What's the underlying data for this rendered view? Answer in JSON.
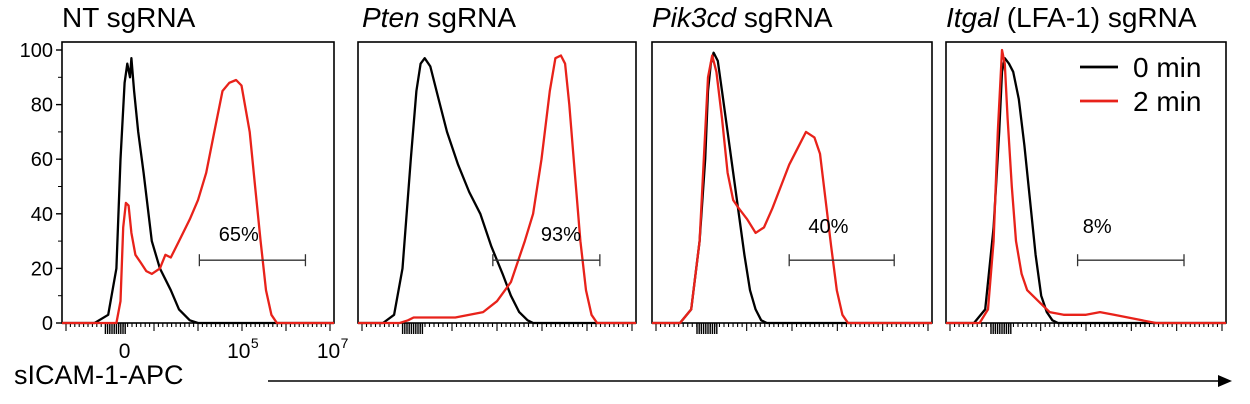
{
  "chart_data": [
    {
      "type": "line",
      "title_italic": "",
      "title": "NT sgRNA",
      "gate_percent": "65%",
      "y_ticks": [
        "0",
        "20",
        "40",
        "60",
        "80",
        "100"
      ],
      "x_ticks": [
        "0",
        "10",
        "5",
        "10",
        "7"
      ],
      "ylim": [
        0,
        100
      ],
      "series": [
        {
          "color": "#000000",
          "peak": 97
        },
        {
          "color": "#e8221a",
          "peak": 89
        }
      ]
    },
    {
      "type": "line",
      "title_italic": "Pten",
      "title": " sgRNA",
      "gate_percent": "93%",
      "ylim": [
        0,
        100
      ],
      "series": [
        {
          "color": "#000000",
          "peak": 97
        },
        {
          "color": "#e8221a",
          "peak": 98
        }
      ]
    },
    {
      "type": "line",
      "title_italic": "Pik3cd",
      "title": " sgRNA",
      "gate_percent": "40%",
      "ylim": [
        0,
        100
      ],
      "series": [
        {
          "color": "#000000",
          "peak": 99
        },
        {
          "color": "#e8221a",
          "peak": 71
        }
      ]
    },
    {
      "type": "line",
      "title_italic": "Itgal",
      "title": " (LFA-1) sgRNA",
      "gate_percent": "8%",
      "ylim": [
        0,
        100
      ],
      "series": [
        {
          "color": "#000000",
          "peak": 97
        },
        {
          "color": "#e8221a",
          "peak": 100
        }
      ]
    }
  ],
  "legend": {
    "items": [
      {
        "label": "0 min",
        "color": "#000000"
      },
      {
        "label": "2 min",
        "color": "#e8221a"
      }
    ]
  },
  "xlabel": "sICAM-1-APC"
}
